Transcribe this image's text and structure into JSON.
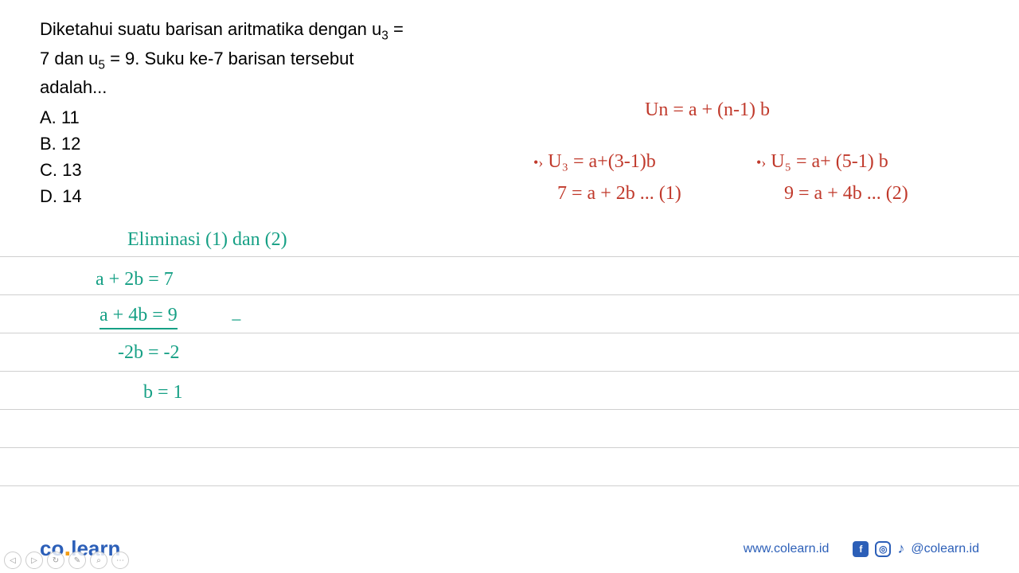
{
  "question": {
    "line1": "Diketahui suatu barisan aritmatika dengan u",
    "sub1": "3",
    "line1_end": " =",
    "line2": "7 dan u",
    "sub2": "5",
    "line2_mid": " = 9. Suku ke-7 barisan tersebut",
    "line3": "adalah..."
  },
  "options": {
    "a": "A.  11",
    "b": "B.  12",
    "c": "C.  13",
    "d": "D.  14"
  },
  "handwriting": {
    "formula_main": "Un = a + (n-1) b",
    "u3_bullet": "•›",
    "u3_formula": " U₃ = a+(3-1)b",
    "u3_result": "7 = a + 2b ... (1)",
    "u5_bullet": "•›",
    "u5_formula": " U₅ = a+ (5-1) b",
    "u5_result": "9 = a + 4b ... (2)",
    "elim_title": "Eliminasi (1) dan (2)",
    "elim_line1": "a + 2b  = 7",
    "elim_line2": "a + 4b  = 9",
    "elim_minus": "−",
    "elim_result1": "-2b = -2",
    "elim_result2": "b = 1"
  },
  "footer": {
    "logo_co": "co",
    "logo_learn": "learn",
    "website": "www.colearn.id",
    "handle": "@colearn.id"
  },
  "colors": {
    "red_ink": "#c0392b",
    "teal_ink": "#16a085",
    "brand_blue": "#2c5fb8",
    "brand_orange": "#f39c12",
    "rule_line": "#d0d0d0"
  }
}
